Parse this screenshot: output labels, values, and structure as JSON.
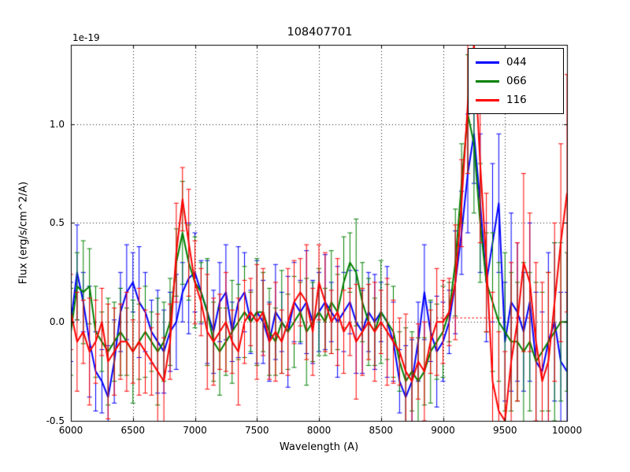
{
  "chart_data": {
    "type": "line",
    "title": "108407701",
    "xlabel": "Wavelength (A)",
    "ylabel": "Flux (erg/s/cm^2/A)",
    "y_offset_factor": "1e-19",
    "xlim": [
      6000,
      10000
    ],
    "ylim": [
      -0.5,
      1.4
    ],
    "grid": "dotted",
    "legend_position": "upper right",
    "x_ticks": [
      6000,
      6500,
      7000,
      7500,
      8000,
      8500,
      9000,
      9500,
      10000
    ],
    "x_tick_labels": [
      "6000",
      "6500",
      "7000",
      "7500",
      "8000",
      "8500",
      "9000",
      "9500",
      "10000"
    ],
    "y_ticks": [
      -0.5,
      0.0,
      0.5,
      1.0
    ],
    "y_tick_labels": [
      "-0.5",
      "0.0",
      "0.5",
      "1.0"
    ],
    "x": [
      6000,
      6050,
      6100,
      6150,
      6200,
      6250,
      6300,
      6350,
      6400,
      6450,
      6500,
      6550,
      6600,
      6650,
      6700,
      6750,
      6800,
      6850,
      6900,
      6950,
      7000,
      7050,
      7100,
      7150,
      7200,
      7250,
      7300,
      7350,
      7400,
      7450,
      7500,
      7550,
      7600,
      7650,
      7700,
      7750,
      7800,
      7850,
      7900,
      7950,
      8000,
      8050,
      8100,
      8150,
      8200,
      8250,
      8300,
      8350,
      8400,
      8450,
      8500,
      8550,
      8600,
      8650,
      8700,
      8750,
      8800,
      8850,
      8900,
      8950,
      9000,
      9050,
      9100,
      9150,
      9200,
      9250,
      9300,
      9350,
      9400,
      9450,
      9500,
      9550,
      9600,
      9650,
      9700,
      9750,
      9800,
      9850,
      9900,
      9950,
      10000
    ],
    "series": [
      {
        "name": "044",
        "color": "#0000ff",
        "values": [
          0.0,
          0.25,
          0.1,
          -0.1,
          -0.25,
          -0.3,
          -0.38,
          -0.2,
          0.05,
          0.15,
          0.2,
          0.1,
          0.05,
          -0.05,
          -0.1,
          -0.15,
          -0.05,
          0.0,
          0.15,
          0.22,
          0.25,
          0.15,
          0.05,
          -0.05,
          0.1,
          0.15,
          -0.05,
          0.1,
          0.15,
          0.0,
          0.05,
          0.0,
          -0.1,
          0.05,
          0.0,
          -0.05,
          0.1,
          0.05,
          0.1,
          0.0,
          0.05,
          0.1,
          0.05,
          0.0,
          0.05,
          0.1,
          0.0,
          -0.05,
          0.05,
          0.0,
          0.05,
          0.0,
          -0.1,
          -0.3,
          -0.38,
          -0.3,
          -0.1,
          0.15,
          -0.05,
          -0.15,
          -0.1,
          0.0,
          0.2,
          0.45,
          0.75,
          0.95,
          0.6,
          0.2,
          0.4,
          0.6,
          -0.1,
          0.1,
          0.05,
          -0.05,
          0.1,
          -0.2,
          -0.25,
          -0.1,
          0.0,
          -0.2,
          -0.25
        ],
        "errors": [
          0.2,
          0.24,
          0.15,
          0.28,
          0.2,
          0.16,
          0.26,
          0.21,
          0.2,
          0.24,
          0.15,
          0.28,
          0.2,
          0.16,
          0.26,
          0.21,
          0.2,
          0.24,
          0.15,
          0.28,
          0.2,
          0.16,
          0.26,
          0.21,
          0.2,
          0.24,
          0.15,
          0.28,
          0.2,
          0.16,
          0.26,
          0.21,
          0.2,
          0.24,
          0.15,
          0.28,
          0.2,
          0.16,
          0.26,
          0.21,
          0.2,
          0.24,
          0.15,
          0.28,
          0.2,
          0.16,
          0.26,
          0.21,
          0.2,
          0.24,
          0.15,
          0.28,
          0.2,
          0.16,
          0.26,
          0.21,
          0.2,
          0.24,
          0.15,
          0.28,
          0.2,
          0.16,
          0.26,
          0.21,
          0.3,
          0.25,
          0.35,
          0.3,
          0.4,
          0.35,
          0.3,
          0.45,
          0.35,
          0.3,
          0.4,
          0.35,
          0.3,
          0.45,
          0.4,
          0.35,
          0.4
        ]
      },
      {
        "name": "066",
        "color": "#008000",
        "values": [
          -0.05,
          0.18,
          0.15,
          0.18,
          -0.05,
          -0.1,
          -0.15,
          -0.1,
          -0.05,
          -0.1,
          -0.15,
          -0.1,
          -0.05,
          -0.1,
          -0.15,
          -0.1,
          0.0,
          0.3,
          0.45,
          0.3,
          0.2,
          0.15,
          0.05,
          -0.1,
          -0.15,
          -0.1,
          -0.05,
          0.0,
          0.05,
          0.0,
          0.05,
          0.05,
          -0.05,
          -0.1,
          0.0,
          -0.05,
          0.0,
          0.05,
          -0.05,
          0.0,
          0.05,
          0.0,
          0.1,
          0.05,
          0.2,
          0.3,
          0.25,
          0.1,
          0.0,
          -0.05,
          0.05,
          0.0,
          -0.05,
          -0.2,
          -0.3,
          -0.25,
          -0.3,
          -0.25,
          -0.15,
          -0.1,
          -0.05,
          0.05,
          0.3,
          0.7,
          1.05,
          0.9,
          0.5,
          0.2,
          0.1,
          0.0,
          -0.05,
          -0.1,
          -0.1,
          -0.15,
          -0.1,
          -0.2,
          -0.15,
          -0.1,
          -0.05,
          0.0,
          0.0
        ],
        "errors": [
          0.22,
          0.17,
          0.26,
          0.19,
          0.23,
          0.15,
          0.27,
          0.2,
          0.22,
          0.17,
          0.26,
          0.19,
          0.23,
          0.15,
          0.27,
          0.2,
          0.22,
          0.17,
          0.26,
          0.19,
          0.23,
          0.15,
          0.27,
          0.2,
          0.22,
          0.17,
          0.26,
          0.19,
          0.23,
          0.15,
          0.27,
          0.2,
          0.22,
          0.17,
          0.26,
          0.19,
          0.23,
          0.15,
          0.27,
          0.2,
          0.22,
          0.17,
          0.26,
          0.19,
          0.23,
          0.15,
          0.27,
          0.2,
          0.22,
          0.17,
          0.26,
          0.19,
          0.23,
          0.15,
          0.27,
          0.2,
          0.22,
          0.17,
          0.26,
          0.19,
          0.23,
          0.15,
          0.27,
          0.2,
          0.3,
          0.35,
          0.3,
          0.25,
          0.35,
          0.3,
          0.4,
          0.35,
          0.3,
          0.45,
          0.35,
          0.4,
          0.3,
          0.35,
          0.45,
          0.4,
          0.35
        ]
      },
      {
        "name": "116",
        "color": "#ff0000",
        "values": [
          0.05,
          -0.1,
          -0.05,
          -0.15,
          -0.1,
          0.0,
          -0.2,
          -0.15,
          -0.1,
          -0.1,
          -0.15,
          -0.1,
          -0.15,
          -0.2,
          -0.25,
          -0.3,
          -0.1,
          0.35,
          0.62,
          0.4,
          0.2,
          0.1,
          -0.05,
          -0.1,
          -0.05,
          0.0,
          -0.1,
          -0.15,
          0.0,
          0.05,
          0.0,
          0.05,
          -0.1,
          -0.05,
          -0.1,
          0.0,
          0.1,
          0.15,
          0.1,
          -0.05,
          0.2,
          0.1,
          0.0,
          0.05,
          -0.05,
          0.0,
          -0.1,
          -0.05,
          0.0,
          -0.05,
          0.0,
          -0.05,
          -0.1,
          -0.15,
          -0.25,
          -0.3,
          -0.2,
          -0.25,
          -0.1,
          0.0,
          0.0,
          0.05,
          0.2,
          0.6,
          1.1,
          1.4,
          0.8,
          0.3,
          -0.3,
          -0.45,
          -0.5,
          -0.2,
          0.0,
          0.3,
          0.2,
          -0.1,
          -0.3,
          -0.2,
          0.1,
          0.4,
          0.65
        ],
        "errors": [
          0.19,
          0.25,
          0.16,
          0.27,
          0.21,
          0.17,
          0.29,
          0.22,
          0.19,
          0.25,
          0.16,
          0.27,
          0.21,
          0.17,
          0.29,
          0.22,
          0.19,
          0.25,
          0.16,
          0.27,
          0.21,
          0.17,
          0.29,
          0.22,
          0.19,
          0.25,
          0.16,
          0.27,
          0.21,
          0.17,
          0.29,
          0.22,
          0.19,
          0.25,
          0.16,
          0.27,
          0.21,
          0.17,
          0.29,
          0.22,
          0.19,
          0.25,
          0.16,
          0.27,
          0.21,
          0.17,
          0.29,
          0.22,
          0.19,
          0.25,
          0.16,
          0.27,
          0.21,
          0.17,
          0.29,
          0.22,
          0.19,
          0.25,
          0.16,
          0.27,
          0.21,
          0.17,
          0.29,
          0.22,
          0.35,
          0.3,
          0.4,
          0.35,
          0.45,
          0.4,
          0.35,
          0.5,
          0.4,
          0.45,
          0.35,
          0.4,
          0.5,
          0.45,
          0.4,
          0.5,
          0.6
        ]
      }
    ],
    "annotations": [
      {
        "type": "hline",
        "y": 0.02,
        "x_start": 8950,
        "x_end": 9700,
        "color": "#ff0000",
        "style": "dotted"
      }
    ]
  }
}
